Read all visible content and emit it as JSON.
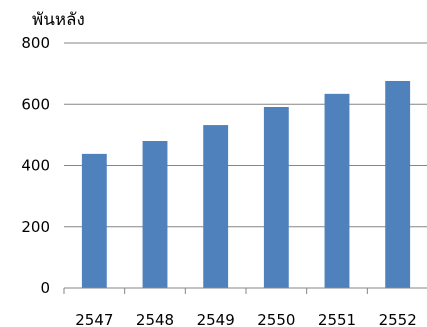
{
  "chart_data": {
    "type": "bar",
    "title": "",
    "xlabel": "",
    "ylabel": "พันหลัง",
    "categories": [
      "2547",
      "2548",
      "2549",
      "2550",
      "2551",
      "2552"
    ],
    "values": [
      438,
      480,
      532,
      591,
      634,
      676
    ],
    "ylim": [
      0,
      800
    ],
    "yticks": [
      0,
      200,
      400,
      600,
      800
    ],
    "grid": true,
    "legend": "none",
    "bar_color": "#4F81BD",
    "grid_color": "#868686"
  }
}
